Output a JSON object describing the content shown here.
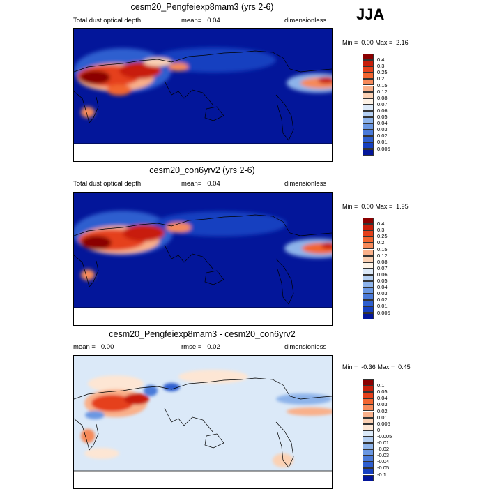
{
  "season": "JJA",
  "panels": [
    {
      "id": "p1",
      "title": "cesm20_Pengfeiexp8mam3 (yrs 2-6)",
      "left_label": "Total dust optical depth",
      "mean_label": "mean=",
      "mean_value": "0.04",
      "rmse_label": "",
      "rmse_value": "",
      "units": "dimensionless",
      "min_label": "Min =",
      "min_value": "0.00",
      "max_label": "Max =",
      "max_value": "2.16",
      "levels": [
        "0.4",
        "0.3",
        "0.25",
        "0.2",
        "0.15",
        "0.12",
        "0.08",
        "0.07",
        "0.06",
        "0.05",
        "0.04",
        "0.03",
        "0.02",
        "0.01",
        "0.005"
      ],
      "colors": [
        "#8b0000",
        "#c81e0a",
        "#e5401a",
        "#f2652f",
        "#f68a5a",
        "#f9b08a",
        "#fbd1b4",
        "#fdf2e6",
        "#dce9f8",
        "#b4cff2",
        "#8db3ea",
        "#6a97e2",
        "#4a7ad9",
        "#2e5fcf",
        "#1640c0",
        "#03169a"
      ]
    },
    {
      "id": "p2",
      "title": "cesm20_con6yrv2 (yrs 2-6)",
      "left_label": "Total dust optical depth",
      "mean_label": "mean=",
      "mean_value": "0.04",
      "rmse_label": "",
      "rmse_value": "",
      "units": "dimensionless",
      "min_label": "Min =",
      "min_value": "0.00",
      "max_label": "Max =",
      "max_value": "1.95",
      "levels": [
        "0.4",
        "0.3",
        "0.25",
        "0.2",
        "0.15",
        "0.12",
        "0.08",
        "0.07",
        "0.06",
        "0.05",
        "0.04",
        "0.03",
        "0.02",
        "0.01",
        "0.005"
      ],
      "colors": [
        "#8b0000",
        "#c81e0a",
        "#e5401a",
        "#f2652f",
        "#f68a5a",
        "#f9b08a",
        "#fbd1b4",
        "#fdf2e6",
        "#dce9f8",
        "#b4cff2",
        "#8db3ea",
        "#6a97e2",
        "#4a7ad9",
        "#2e5fcf",
        "#1640c0",
        "#03169a"
      ]
    },
    {
      "id": "p3",
      "title": "cesm20_Pengfeiexp8mam3 - cesm20_con6yrv2",
      "left_label": "",
      "mean_label": "mean =",
      "mean_value": "0.00",
      "rmse_label": "rmse =",
      "rmse_value": "0.02",
      "units": "dimensionless",
      "min_label": "Min =",
      "min_value": "-0.36",
      "max_label": "Max =",
      "max_value": "0.45",
      "levels": [
        "0.1",
        "0.05",
        "0.04",
        "0.03",
        "0.02",
        "0.01",
        "0.005",
        "0",
        "-0.005",
        "-0.01",
        "-0.02",
        "-0.03",
        "-0.04",
        "-0.05",
        "-0.1"
      ],
      "colors": [
        "#8b0000",
        "#c81e0a",
        "#e5401a",
        "#f2652f",
        "#f68a5a",
        "#f9b08a",
        "#fbd1b4",
        "#fde6d4",
        "#dbe9f8",
        "#b4cff2",
        "#8db3ea",
        "#6a97e2",
        "#4a7ad9",
        "#2e5fcf",
        "#1640c0",
        "#03169a"
      ]
    }
  ],
  "chart_data": [
    {
      "type": "heatmap",
      "title": "cesm20_Pengfeiexp8mam3 (yrs 2-6)",
      "variable": "Total dust optical depth",
      "units": "dimensionless",
      "mean": 0.04,
      "min": 0.0,
      "max": 2.16,
      "levels": [
        0.005,
        0.01,
        0.02,
        0.03,
        0.04,
        0.05,
        0.06,
        0.07,
        0.08,
        0.12,
        0.15,
        0.2,
        0.25,
        0.3,
        0.4
      ]
    },
    {
      "type": "heatmap",
      "title": "cesm20_con6yrv2 (yrs 2-6)",
      "variable": "Total dust optical depth",
      "units": "dimensionless",
      "mean": 0.04,
      "min": 0.0,
      "max": 1.95,
      "levels": [
        0.005,
        0.01,
        0.02,
        0.03,
        0.04,
        0.05,
        0.06,
        0.07,
        0.08,
        0.12,
        0.15,
        0.2,
        0.25,
        0.3,
        0.4
      ]
    },
    {
      "type": "heatmap",
      "title": "cesm20_Pengfeiexp8mam3 - cesm20_con6yrv2",
      "units": "dimensionless",
      "mean": 0.0,
      "rmse": 0.02,
      "min": -0.36,
      "max": 0.45,
      "levels": [
        -0.1,
        -0.05,
        -0.04,
        -0.03,
        -0.02,
        -0.01,
        -0.005,
        0,
        0.005,
        0.01,
        0.02,
        0.03,
        0.04,
        0.05,
        0.1
      ]
    }
  ]
}
